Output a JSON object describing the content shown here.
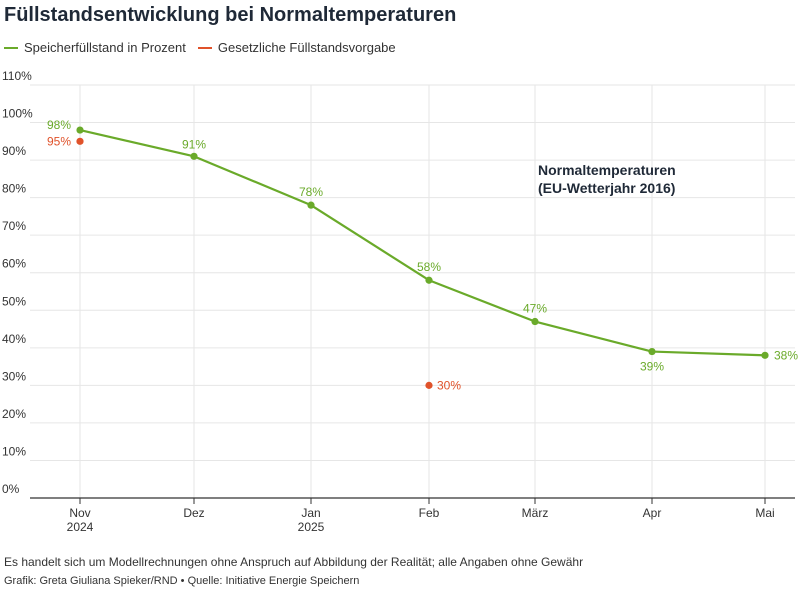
{
  "colors": {
    "series": "#6aaa2a",
    "target": "#e0522a",
    "grid": "#e6e6e6",
    "axis": "#333333",
    "annotation": "#1f2937"
  },
  "footer": {
    "note": "Es handelt sich um Modellrechnungen ohne Anspruch auf Abbildung der Realität; alle Angaben ohne Gewähr",
    "credit": "Grafik: Greta Giuliana Spieker/RND • Quelle: Initiative Energie Speichern"
  },
  "chart_data": {
    "type": "line",
    "title": "Füllstandsentwicklung bei Normaltemperaturen",
    "annotation": [
      "Normaltemperaturen",
      "(EU-Wetterjahr 2016)"
    ],
    "x_ticks": [
      {
        "label": "Nov",
        "sub": "2024"
      },
      {
        "label": "Dez",
        "sub": ""
      },
      {
        "label": "Jan",
        "sub": "2025"
      },
      {
        "label": "Feb",
        "sub": ""
      },
      {
        "label": "März",
        "sub": ""
      },
      {
        "label": "Apr",
        "sub": ""
      },
      {
        "label": "Mai",
        "sub": ""
      }
    ],
    "y_ticks": [
      "0%",
      "10%",
      "20%",
      "30%",
      "40%",
      "50%",
      "60%",
      "70%",
      "80%",
      "90%",
      "100%",
      "110%"
    ],
    "ylim": [
      0,
      110
    ],
    "grid": true,
    "legend_position": "top-left",
    "series": [
      {
        "name": "Speicherfüllstand in Prozent",
        "points": [
          {
            "x": "Nov",
            "y": 98,
            "label": "98%"
          },
          {
            "x": "Dez",
            "y": 91,
            "label": "91%"
          },
          {
            "x": "Jan",
            "y": 78,
            "label": "78%"
          },
          {
            "x": "Feb",
            "y": 58,
            "label": "58%"
          },
          {
            "x": "März",
            "y": 47,
            "label": "47%"
          },
          {
            "x": "Apr",
            "y": 39,
            "label": "39%"
          },
          {
            "x": "Mai",
            "y": 38,
            "label": "38%"
          }
        ]
      },
      {
        "name": "Gesetzliche Füllstandsvorgabe",
        "points": [
          {
            "x": "Nov",
            "y": 95,
            "label": "95%"
          },
          {
            "x": "Feb",
            "y": 30,
            "label": "30%"
          }
        ]
      }
    ]
  }
}
